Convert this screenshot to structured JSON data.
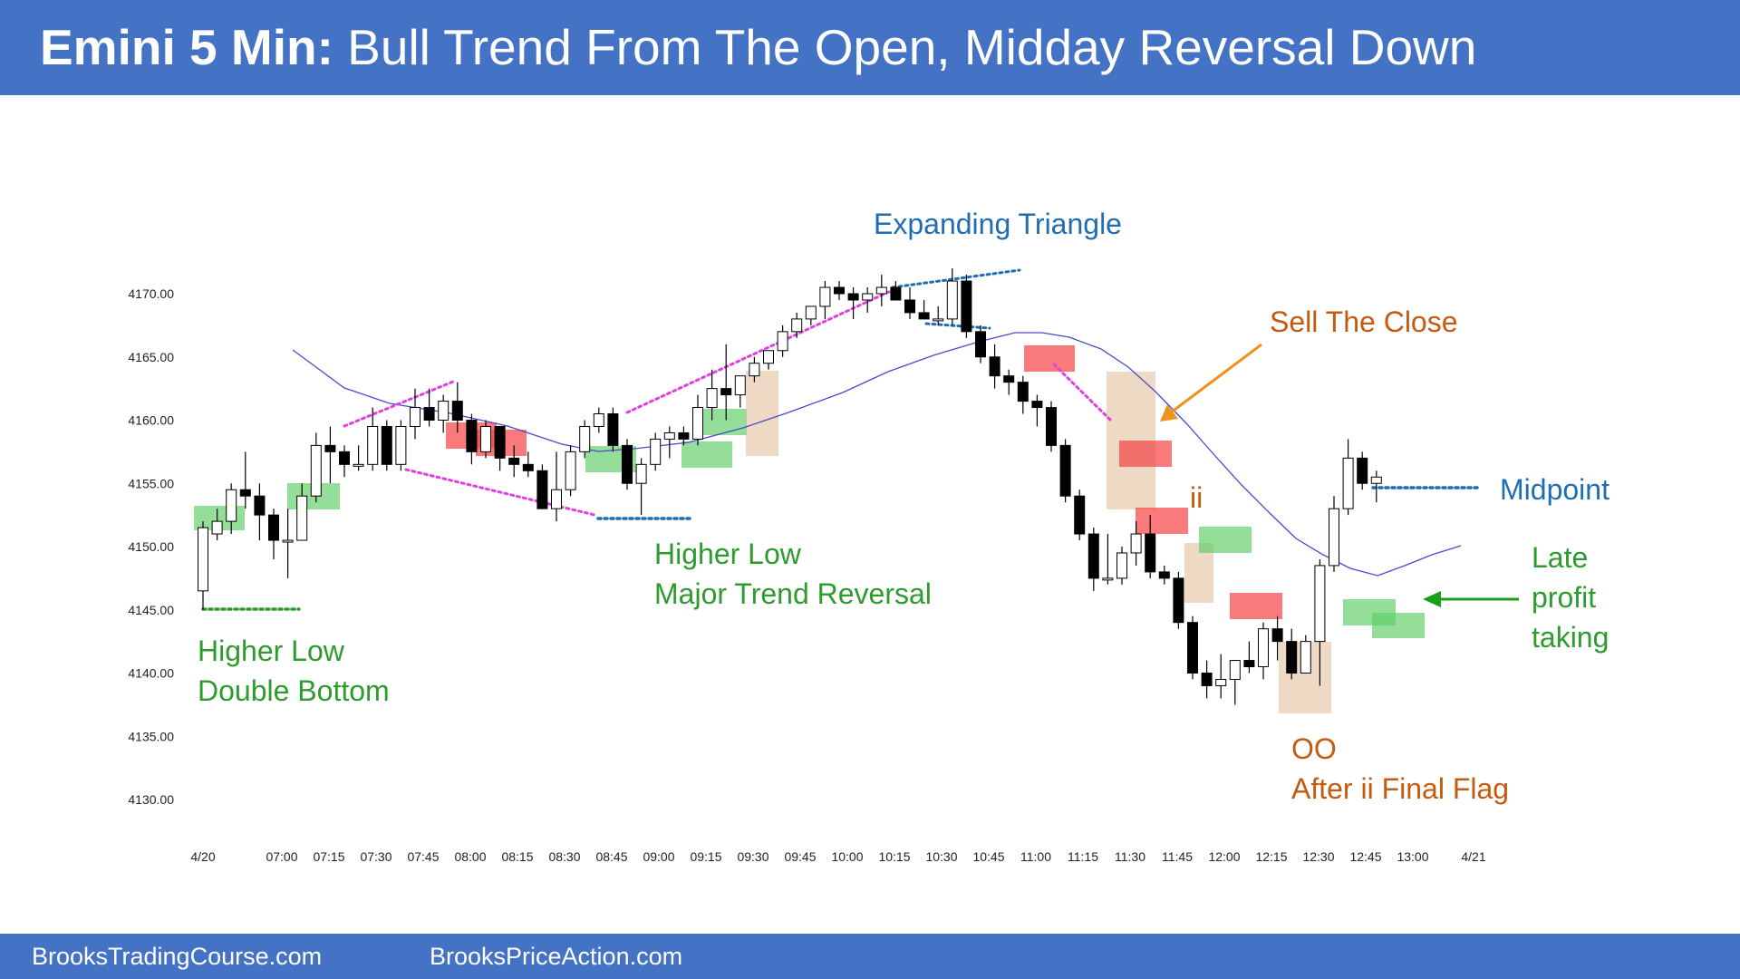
{
  "header": {
    "title_bold": "Emini 5 Min:",
    "title_rest": " Bull Trend From The Open, Midday Reversal Down"
  },
  "footer": {
    "left": "BrooksTradingCourse.com",
    "right": "BrooksPriceAction.com"
  },
  "colors": {
    "banner": "#4472c4",
    "green": "#2e9b2e",
    "orange": "#c55a11",
    "blue": "#1f6db3",
    "magenta": "#e040e0",
    "ema": "#4a4ac8"
  },
  "annotations": {
    "expanding_triangle": "Expanding Triangle",
    "sell_the_close": "Sell The Close",
    "ii": "ii",
    "midpoint": "Midpoint",
    "late_profit_1": "Late",
    "late_profit_2": "profit",
    "late_profit_3": "taking",
    "higher_low_1": "Higher Low",
    "higher_low_2": "Double Bottom",
    "mtr_1": "Higher Low",
    "mtr_2": "Major Trend Reversal",
    "oo_1": "OO",
    "oo_2": "After ii Final Flag"
  },
  "chart_data": {
    "type": "candlestick",
    "title": "Emini 5 Min",
    "y_ticks": [
      "4170.00",
      "4165.00",
      "4160.00",
      "4155.00",
      "4150.00",
      "4145.00",
      "4140.00",
      "4135.00",
      "4130.00"
    ],
    "ylim": [
      4128,
      4174
    ],
    "x_ticks": [
      "4/20",
      "07:00",
      "07:15",
      "07:30",
      "07:45",
      "08:00",
      "08:15",
      "08:30",
      "08:45",
      "09:00",
      "09:15",
      "09:30",
      "09:45",
      "10:00",
      "10:15",
      "10:30",
      "10:45",
      "11:00",
      "11:15",
      "11:30",
      "11:45",
      "12:00",
      "12:15",
      "12:30",
      "12:45",
      "13:00",
      "4/21"
    ],
    "candles": [
      {
        "o": 4146.5,
        "h": 4152.0,
        "l": 4145.0,
        "c": 4151.5
      },
      {
        "o": 4151.0,
        "h": 4153.0,
        "l": 4150.5,
        "c": 4152.0
      },
      {
        "o": 4152.0,
        "h": 4155.0,
        "l": 4151.0,
        "c": 4154.5
      },
      {
        "o": 4154.5,
        "h": 4157.5,
        "l": 4153.0,
        "c": 4154.0
      },
      {
        "o": 4154.0,
        "h": 4155.0,
        "l": 4150.5,
        "c": 4152.5
      },
      {
        "o": 4152.5,
        "h": 4153.0,
        "l": 4149.0,
        "c": 4150.5
      },
      {
        "o": 4150.5,
        "h": 4153.0,
        "l": 4147.5,
        "c": 4150.5
      },
      {
        "o": 4150.5,
        "h": 4155.0,
        "l": 4150.5,
        "c": 4154.0
      },
      {
        "o": 4154.0,
        "h": 4159.0,
        "l": 4153.5,
        "c": 4158.0
      },
      {
        "o": 4158.0,
        "h": 4159.5,
        "l": 4155.0,
        "c": 4157.5
      },
      {
        "o": 4157.5,
        "h": 4158.0,
        "l": 4155.5,
        "c": 4156.5
      },
      {
        "o": 4156.5,
        "h": 4158.0,
        "l": 4156.0,
        "c": 4156.5
      },
      {
        "o": 4156.5,
        "h": 4161.0,
        "l": 4156.0,
        "c": 4159.5
      },
      {
        "o": 4159.5,
        "h": 4160.0,
        "l": 4156.0,
        "c": 4156.5
      },
      {
        "o": 4156.5,
        "h": 4160.0,
        "l": 4156.0,
        "c": 4159.5
      },
      {
        "o": 4159.5,
        "h": 4162.5,
        "l": 4158.5,
        "c": 4161.0
      },
      {
        "o": 4161.0,
        "h": 4162.5,
        "l": 4159.5,
        "c": 4160.0
      },
      {
        "o": 4160.0,
        "h": 4162.0,
        "l": 4159.0,
        "c": 4161.5
      },
      {
        "o": 4161.5,
        "h": 4163.0,
        "l": 4159.0,
        "c": 4160.0
      },
      {
        "o": 4160.0,
        "h": 4160.5,
        "l": 4156.5,
        "c": 4157.5
      },
      {
        "o": 4157.5,
        "h": 4160.0,
        "l": 4157.0,
        "c": 4159.5
      },
      {
        "o": 4159.5,
        "h": 4159.5,
        "l": 4156.0,
        "c": 4157.0
      },
      {
        "o": 4157.0,
        "h": 4158.0,
        "l": 4155.5,
        "c": 4156.5
      },
      {
        "o": 4156.5,
        "h": 4157.5,
        "l": 4155.5,
        "c": 4156.0
      },
      {
        "o": 4156.0,
        "h": 4156.5,
        "l": 4153.0,
        "c": 4153.0
      },
      {
        "o": 4153.0,
        "h": 4157.5,
        "l": 4152.0,
        "c": 4154.5
      },
      {
        "o": 4154.5,
        "h": 4158.0,
        "l": 4154.0,
        "c": 4157.5
      },
      {
        "o": 4157.5,
        "h": 4160.0,
        "l": 4157.0,
        "c": 4159.5
      },
      {
        "o": 4159.5,
        "h": 4161.0,
        "l": 4159.0,
        "c": 4160.5
      },
      {
        "o": 4160.5,
        "h": 4161.0,
        "l": 4157.5,
        "c": 4158.0
      },
      {
        "o": 4158.0,
        "h": 4158.5,
        "l": 4154.5,
        "c": 4155.0
      },
      {
        "o": 4155.0,
        "h": 4157.0,
        "l": 4152.5,
        "c": 4156.5
      },
      {
        "o": 4156.5,
        "h": 4159.0,
        "l": 4156.0,
        "c": 4158.5
      },
      {
        "o": 4158.5,
        "h": 4159.5,
        "l": 4157.0,
        "c": 4159.0
      },
      {
        "o": 4159.0,
        "h": 4159.5,
        "l": 4158.0,
        "c": 4158.5
      },
      {
        "o": 4158.5,
        "h": 4162.0,
        "l": 4158.0,
        "c": 4161.0
      },
      {
        "o": 4161.0,
        "h": 4164.0,
        "l": 4160.0,
        "c": 4162.5
      },
      {
        "o": 4162.5,
        "h": 4166.0,
        "l": 4160.0,
        "c": 4162.0
      },
      {
        "o": 4162.0,
        "h": 4163.5,
        "l": 4161.0,
        "c": 4163.5
      },
      {
        "o": 4163.5,
        "h": 4165.0,
        "l": 4163.0,
        "c": 4164.5
      },
      {
        "o": 4164.5,
        "h": 4165.5,
        "l": 4164.0,
        "c": 4165.5
      },
      {
        "o": 4165.5,
        "h": 4167.5,
        "l": 4165.0,
        "c": 4167.0
      },
      {
        "o": 4167.0,
        "h": 4168.5,
        "l": 4166.5,
        "c": 4168.0
      },
      {
        "o": 4168.0,
        "h": 4169.0,
        "l": 4167.5,
        "c": 4169.0
      },
      {
        "o": 4169.0,
        "h": 4171.0,
        "l": 4168.0,
        "c": 4170.5
      },
      {
        "o": 4170.5,
        "h": 4171.0,
        "l": 4169.5,
        "c": 4170.0
      },
      {
        "o": 4170.0,
        "h": 4170.5,
        "l": 4168.0,
        "c": 4169.5
      },
      {
        "o": 4169.5,
        "h": 4170.5,
        "l": 4168.5,
        "c": 4170.0
      },
      {
        "o": 4170.0,
        "h": 4171.5,
        "l": 4169.0,
        "c": 4170.5
      },
      {
        "o": 4170.5,
        "h": 4171.0,
        "l": 4169.5,
        "c": 4169.5
      },
      {
        "o": 4169.5,
        "h": 4170.5,
        "l": 4168.0,
        "c": 4168.5
      },
      {
        "o": 4168.5,
        "h": 4169.5,
        "l": 4168.0,
        "c": 4168.0
      },
      {
        "o": 4168.0,
        "h": 4169.0,
        "l": 4167.5,
        "c": 4168.0
      },
      {
        "o": 4168.0,
        "h": 4172.0,
        "l": 4167.5,
        "c": 4171.0
      },
      {
        "o": 4171.0,
        "h": 4171.5,
        "l": 4166.5,
        "c": 4167.0
      },
      {
        "o": 4167.0,
        "h": 4167.5,
        "l": 4164.5,
        "c": 4165.0
      },
      {
        "o": 4165.0,
        "h": 4166.0,
        "l": 4162.5,
        "c": 4163.5
      },
      {
        "o": 4163.5,
        "h": 4164.0,
        "l": 4162.0,
        "c": 4163.0
      },
      {
        "o": 4163.0,
        "h": 4163.5,
        "l": 4160.5,
        "c": 4161.5
      },
      {
        "o": 4161.5,
        "h": 4162.0,
        "l": 4159.5,
        "c": 4161.0
      },
      {
        "o": 4161.0,
        "h": 4161.5,
        "l": 4157.5,
        "c": 4158.0
      },
      {
        "o": 4158.0,
        "h": 4158.5,
        "l": 4153.5,
        "c": 4154.0
      },
      {
        "o": 4154.0,
        "h": 4154.5,
        "l": 4150.5,
        "c": 4151.0
      },
      {
        "o": 4151.0,
        "h": 4151.5,
        "l": 4146.5,
        "c": 4147.5
      },
      {
        "o": 4147.5,
        "h": 4151.0,
        "l": 4147.0,
        "c": 4147.5
      },
      {
        "o": 4147.5,
        "h": 4150.0,
        "l": 4147.0,
        "c": 4149.5
      },
      {
        "o": 4149.5,
        "h": 4152.0,
        "l": 4148.5,
        "c": 4151.0
      },
      {
        "o": 4151.0,
        "h": 4152.5,
        "l": 4147.5,
        "c": 4148.0
      },
      {
        "o": 4148.0,
        "h": 4148.5,
        "l": 4147.0,
        "c": 4147.5
      },
      {
        "o": 4147.5,
        "h": 4148.0,
        "l": 4143.5,
        "c": 4144.0
      },
      {
        "o": 4144.0,
        "h": 4144.5,
        "l": 4139.5,
        "c": 4140.0
      },
      {
        "o": 4140.0,
        "h": 4141.0,
        "l": 4138.0,
        "c": 4139.0
      },
      {
        "o": 4139.0,
        "h": 4141.5,
        "l": 4138.0,
        "c": 4139.5
      },
      {
        "o": 4139.5,
        "h": 4141.0,
        "l": 4137.5,
        "c": 4141.0
      },
      {
        "o": 4141.0,
        "h": 4142.5,
        "l": 4140.0,
        "c": 4140.5
      },
      {
        "o": 4140.5,
        "h": 4144.0,
        "l": 4139.5,
        "c": 4143.5
      },
      {
        "o": 4143.5,
        "h": 4144.5,
        "l": 4141.0,
        "c": 4142.5
      },
      {
        "o": 4142.5,
        "h": 4143.5,
        "l": 4139.5,
        "c": 4140.0
      },
      {
        "o": 4140.0,
        "h": 4143.0,
        "l": 4140.0,
        "c": 4142.5
      },
      {
        "o": 4142.5,
        "h": 4149.0,
        "l": 4139.0,
        "c": 4148.5
      },
      {
        "o": 4148.5,
        "h": 4154.0,
        "l": 4148.0,
        "c": 4153.0
      },
      {
        "o": 4153.0,
        "h": 4158.5,
        "l": 4152.5,
        "c": 4157.0
      },
      {
        "o": 4157.0,
        "h": 4157.5,
        "l": 4154.5,
        "c": 4155.0
      },
      {
        "o": 4155.0,
        "h": 4156.0,
        "l": 4153.5,
        "c": 4155.5
      }
    ]
  }
}
